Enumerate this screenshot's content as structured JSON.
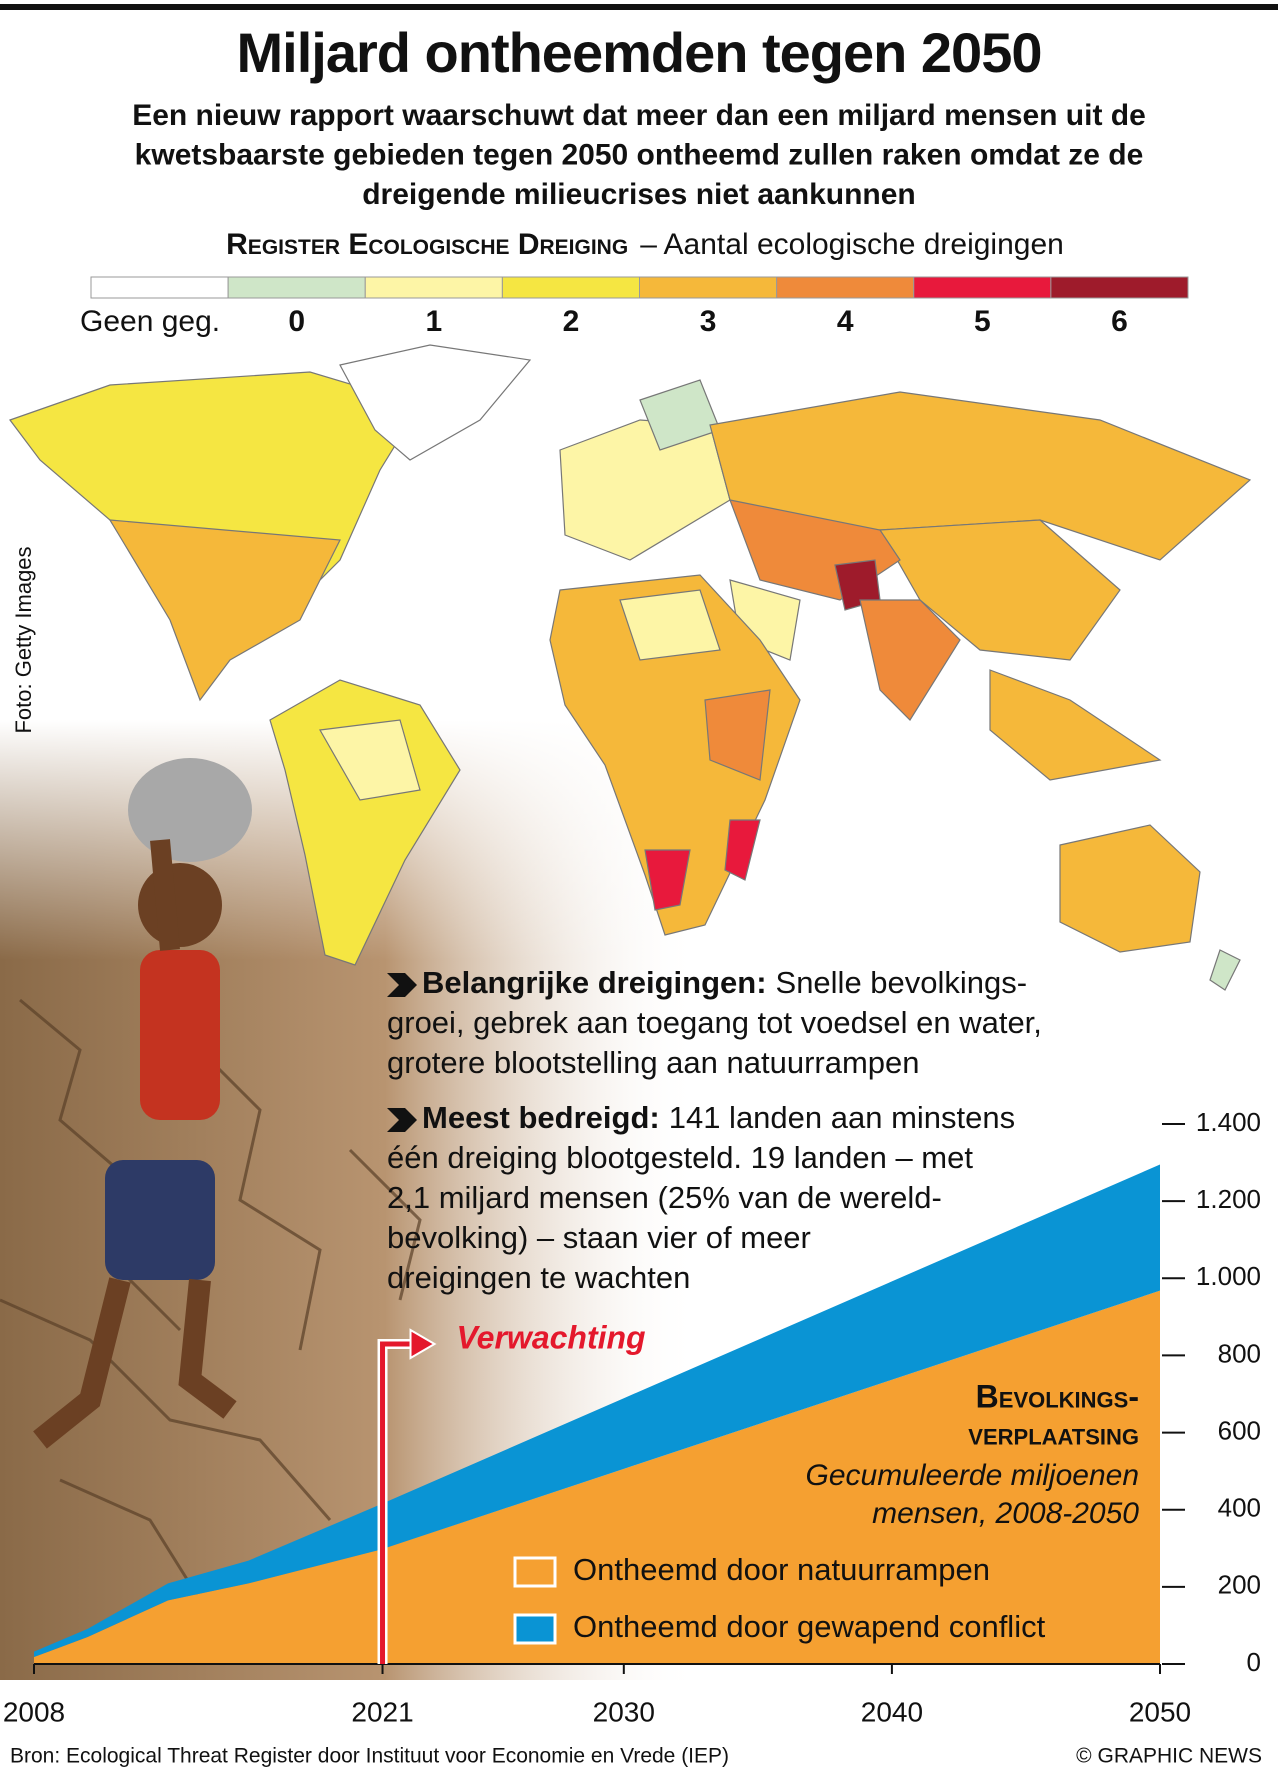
{
  "header": {
    "title": "Miljard ontheemden tegen 2050",
    "subtitle_lines": [
      "Een nieuw rapport waarschuwt dat meer dan een miljard mensen uit de",
      "kwetsbaarste gebieden tegen 2050 ontheemd zullen raken omdat ze de",
      "dreigende milieucrises niet aankunnen"
    ]
  },
  "map_legend": {
    "title": "Register Ecologische Dreiging",
    "subtitle": "– Aantal ecologische dreigingen",
    "items": [
      {
        "label": "Geen geg.",
        "color": "#ffffff"
      },
      {
        "label": "0",
        "color": "#cfe6c8"
      },
      {
        "label": "1",
        "color": "#fdf5a6"
      },
      {
        "label": "2",
        "color": "#f5e642"
      },
      {
        "label": "3",
        "color": "#f5b83a"
      },
      {
        "label": "4",
        "color": "#ef8a3a"
      },
      {
        "label": "5",
        "color": "#e8193c"
      },
      {
        "label": "6",
        "color": "#9e1b2b"
      }
    ]
  },
  "photo_credit": "Foto: Getty Images",
  "threats": {
    "label": "Belangrijke dreigingen:",
    "lines": [
      "Snelle bevolkings-",
      "groei, gebrek aan toegang tot voedsel en water,",
      "grotere blootstelling aan natuurrampen"
    ]
  },
  "most_threatened": {
    "label": "Meest bedreigd:",
    "lines": [
      "141 landen aan minstens",
      "één dreiging blootgesteld. 19 landen – met",
      "2,1 miljard mensen (25% van de wereld-",
      "bevolking) – staan vier of meer",
      "dreigingen te wachten"
    ]
  },
  "chart_data": {
    "type": "area",
    "title_lines": [
      "Bevolkings-",
      "verplaatsing"
    ],
    "subtitle_lines": [
      "Gecumuleerde miljoenen",
      "mensen, 2008-2050"
    ],
    "annotation": "Verwachting",
    "annotation_x": 2021,
    "x": [
      2008,
      2010,
      2013,
      2016,
      2021,
      2030,
      2040,
      2050
    ],
    "series": [
      {
        "name": "Ontheemd door natuurrampen",
        "color": "#f5a031",
        "values": [
          18,
          70,
          165,
          209,
          298,
          506,
          737,
          968
        ]
      },
      {
        "name": "Ontheemd door gewapend conflict",
        "color": "#0a94d4",
        "values": [
          14,
          21,
          44,
          59,
          118,
          183,
          255,
          327
        ]
      }
    ],
    "stacked": true,
    "xlim": [
      2008,
      2050
    ],
    "xticks": [
      2008,
      2021,
      2030,
      2040,
      2050
    ],
    "ylim": [
      0,
      1400
    ],
    "yticks": [
      0,
      200,
      400,
      600,
      800,
      {
        "value": 1000,
        "label": "1.000"
      },
      {
        "value": 1200,
        "label": "1.200"
      },
      {
        "value": 1400,
        "label": "1.400"
      }
    ]
  },
  "footer": {
    "source": "Bron: Ecological Threat Register door Instituut voor Economie en Vrede (IEP)",
    "credit": "© GRAPHIC NEWS"
  }
}
